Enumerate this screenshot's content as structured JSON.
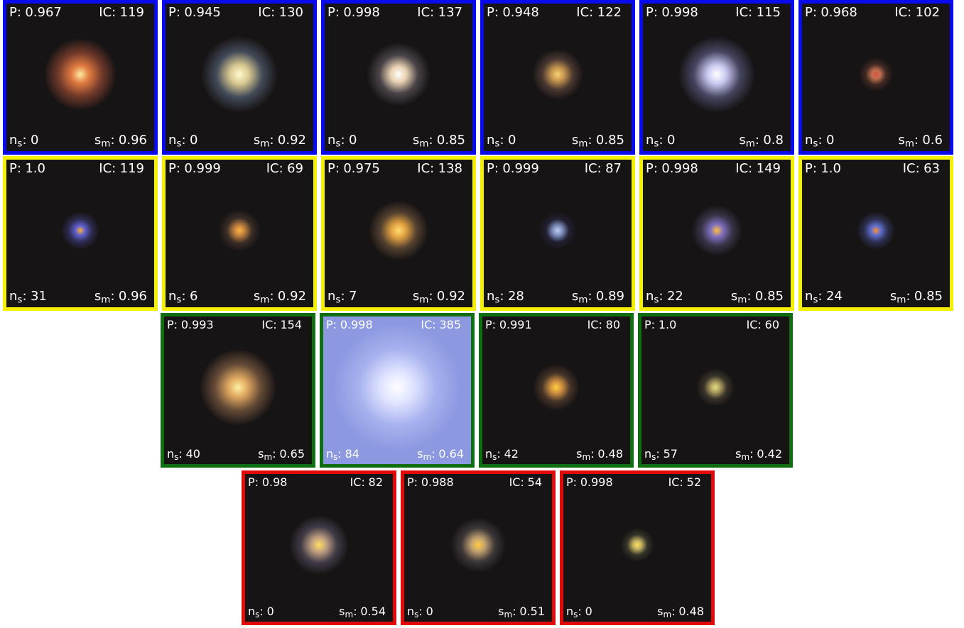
{
  "labels": {
    "p": "P:",
    "ic": "IC:",
    "ns": {
      "base": "n",
      "sub": "s",
      "sep": ":"
    },
    "sm": {
      "base": "s",
      "sub": "m",
      "sep": ":"
    }
  },
  "groups": [
    {
      "border": "#0a0aee",
      "tiles": [
        {
          "p": "0.967",
          "ic": 119,
          "ns": 0,
          "sm": 0.96
        },
        {
          "p": "0.945",
          "ic": 130,
          "ns": 0,
          "sm": 0.92
        },
        {
          "p": "0.998",
          "ic": 137,
          "ns": 0,
          "sm": 0.85
        },
        {
          "p": "0.948",
          "ic": 122,
          "ns": 0,
          "sm": 0.85
        },
        {
          "p": "0.998",
          "ic": 115,
          "ns": 0,
          "sm": 0.8
        },
        {
          "p": "0.968",
          "ic": 102,
          "ns": 0,
          "sm": 0.6
        }
      ]
    },
    {
      "border": "#f4f000",
      "tiles": [
        {
          "p": "1.0",
          "ic": 119,
          "ns": 31,
          "sm": 0.96
        },
        {
          "p": "0.999",
          "ic": 69,
          "ns": 6,
          "sm": 0.92
        },
        {
          "p": "0.975",
          "ic": 138,
          "ns": 7,
          "sm": 0.92
        },
        {
          "p": "0.999",
          "ic": 87,
          "ns": 28,
          "sm": 0.89
        },
        {
          "p": "0.998",
          "ic": 149,
          "ns": 22,
          "sm": 0.85
        },
        {
          "p": "1.0",
          "ic": 63,
          "ns": 24,
          "sm": 0.85
        }
      ]
    },
    {
      "border": "#0f6e0f",
      "tiles": [
        {
          "p": "0.993",
          "ic": 154,
          "ns": 40,
          "sm": 0.65
        },
        {
          "p": "0.998",
          "ic": 385,
          "ns": 84,
          "sm": 0.64
        },
        {
          "p": "0.991",
          "ic": 80,
          "ns": 42,
          "sm": 0.48
        },
        {
          "p": "1.0",
          "ic": 60,
          "ns": 57,
          "sm": 0.42
        }
      ]
    },
    {
      "border": "#e00a0a",
      "tiles": [
        {
          "p": "0.98",
          "ic": 82,
          "ns": 0,
          "sm": 0.54
        },
        {
          "p": "0.988",
          "ic": 54,
          "ns": 0,
          "sm": 0.51
        },
        {
          "p": "0.998",
          "ic": 52,
          "ns": 0,
          "sm": 0.48
        }
      ]
    }
  ]
}
